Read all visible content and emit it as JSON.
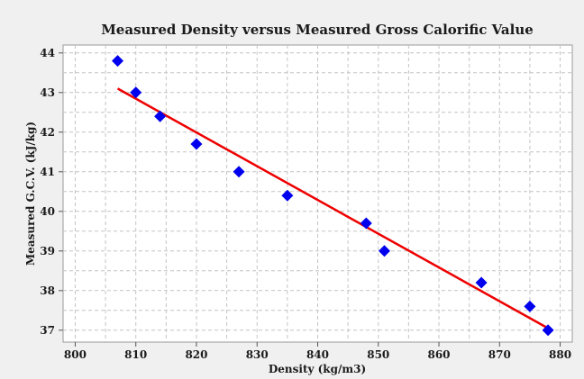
{
  "chart_data": {
    "type": "scatter",
    "title": "Measured Density versus Measured Gross Calorific Value",
    "xlabel": "Density (kg/m3)",
    "ylabel": "Measured G.C.V. (kJ/kg)",
    "xlim": [
      798,
      882
    ],
    "ylim": [
      36.7,
      44.2
    ],
    "x_ticks": [
      800,
      810,
      820,
      830,
      840,
      850,
      860,
      870,
      880
    ],
    "y_ticks": [
      37,
      38,
      39,
      40,
      41,
      42,
      43,
      44
    ],
    "grid": true,
    "legend": "none",
    "series": [
      {
        "marker": "diamond",
        "color": "#0000ee",
        "points": [
          {
            "x": 807,
            "y": 43.8
          },
          {
            "x": 810,
            "y": 43.0
          },
          {
            "x": 814,
            "y": 42.4
          },
          {
            "x": 820,
            "y": 41.7
          },
          {
            "x": 827,
            "y": 41.0
          },
          {
            "x": 835,
            "y": 40.4
          },
          {
            "x": 848,
            "y": 39.7
          },
          {
            "x": 851,
            "y": 39.0
          },
          {
            "x": 867,
            "y": 38.2
          },
          {
            "x": 875,
            "y": 37.6
          },
          {
            "x": 878,
            "y": 37.0
          }
        ]
      }
    ],
    "fit_line": {
      "color": "#ee0000",
      "from": {
        "x": 807,
        "y": 43.1
      },
      "to": {
        "x": 878,
        "y": 37.05
      }
    }
  }
}
